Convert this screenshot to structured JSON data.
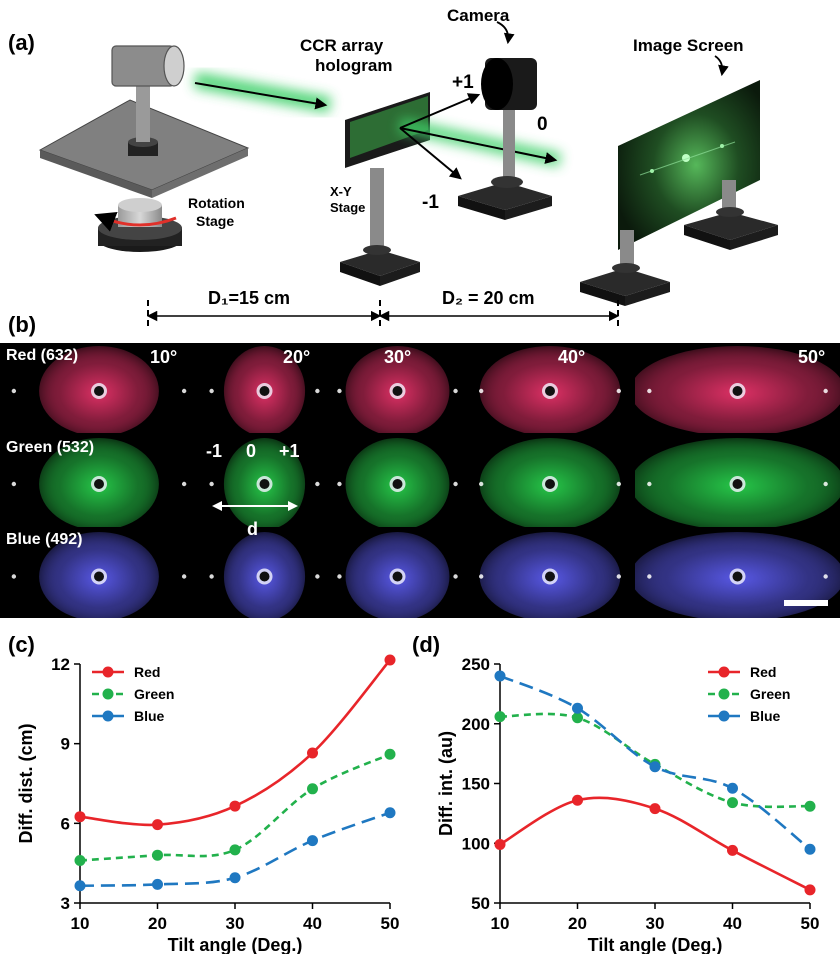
{
  "panel_a": {
    "label": "(a)",
    "camera": "Camera",
    "ccr_line1": "CCR array",
    "ccr_line2": "hologram",
    "image_screen": "Image Screen",
    "rotation_line1": "Rotation",
    "rotation_line2": "Stage",
    "xy_line1": "X-Y",
    "xy_line2": "Stage",
    "order_plus": "+1",
    "order_zero": "0",
    "order_minus": "-1",
    "d1": "D₁=15 cm",
    "d2": "D₂ = 20 cm"
  },
  "panel_b": {
    "label": "(b)",
    "rows": [
      {
        "label": "Red (632)",
        "color": "#e8336a"
      },
      {
        "label": "Green (532)",
        "color": "#28d04c"
      },
      {
        "label": "Blue (492)",
        "color": "#5c5cf0"
      }
    ],
    "angles": [
      "10°",
      "20°",
      "30°",
      "40°",
      "50°"
    ],
    "orders": {
      "minus": "-1",
      "zero": "0",
      "plus": "+1"
    },
    "d_label": "d"
  },
  "chart_data": [
    {
      "panel": "(c)",
      "type": "line",
      "x": [
        10,
        20,
        30,
        40,
        50
      ],
      "xlabel": "Tilt angle (Deg.)",
      "ylabel": "Diff. dist. (cm)",
      "xlim": [
        10,
        50
      ],
      "ylim": [
        3,
        12
      ],
      "xticks": [
        10,
        20,
        30,
        40,
        50
      ],
      "yticks": [
        3,
        6,
        9,
        12
      ],
      "legend": "top-left",
      "series": [
        {
          "name": "Red",
          "color": "#e8252a",
          "style": "solid",
          "values": [
            6.25,
            5.95,
            6.65,
            8.65,
            12.15
          ]
        },
        {
          "name": "Green",
          "color": "#22b14c",
          "style": "dashed",
          "values": [
            4.6,
            4.8,
            5.0,
            7.3,
            8.6
          ]
        },
        {
          "name": "Blue",
          "color": "#1f78c1",
          "style": "longdash",
          "values": [
            3.65,
            3.7,
            3.95,
            5.35,
            6.4
          ]
        }
      ]
    },
    {
      "panel": "(d)",
      "type": "line",
      "x": [
        10,
        20,
        30,
        40,
        50
      ],
      "xlabel": "Tilt angle (Deg.)",
      "ylabel": "Diff. int. (au)",
      "xlim": [
        10,
        50
      ],
      "ylim": [
        50,
        250
      ],
      "xticks": [
        10,
        20,
        30,
        40,
        50
      ],
      "yticks": [
        50,
        100,
        150,
        200,
        250
      ],
      "legend": "top-right",
      "series": [
        {
          "name": "Red",
          "color": "#e8252a",
          "style": "solid",
          "values": [
            99,
            136,
            129,
            94,
            61
          ]
        },
        {
          "name": "Green",
          "color": "#22b14c",
          "style": "dashed",
          "values": [
            206,
            205,
            166,
            134,
            131
          ]
        },
        {
          "name": "Blue",
          "color": "#1f78c1",
          "style": "longdash",
          "values": [
            240,
            213,
            164,
            146,
            95
          ]
        }
      ]
    }
  ]
}
